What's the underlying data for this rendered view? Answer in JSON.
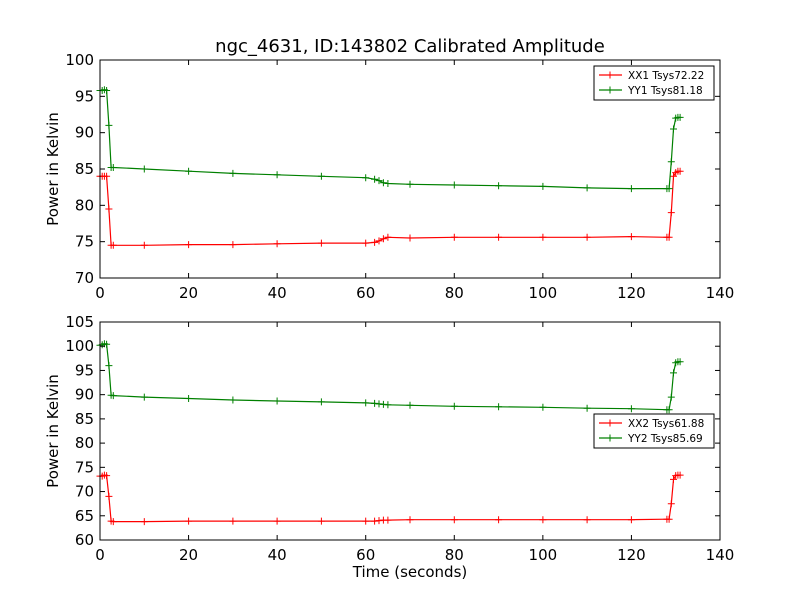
{
  "figure": {
    "title": "ngc_4631, ID:143802 Calibrated Amplitude",
    "xlabel": "Time (seconds)"
  },
  "chart_data": [
    {
      "type": "line",
      "title": "ngc_4631, ID:143802 Calibrated Amplitude",
      "xlabel": "",
      "ylabel": "Power in Kelvin",
      "xlim": [
        0,
        140
      ],
      "ylim": [
        70,
        100
      ],
      "xticks": [
        "0",
        "20",
        "40",
        "60",
        "80",
        "100",
        "120",
        "140"
      ],
      "yticks": [
        "70",
        "75",
        "80",
        "85",
        "90",
        "95",
        "100"
      ],
      "grid": false,
      "legend_position": "top-right",
      "marker": "+",
      "series": [
        {
          "name": "XX1 Tsys72.22",
          "color": "#ff0000",
          "x": [
            0,
            0.5,
            1,
            1.5,
            2,
            2.5,
            3,
            10,
            20,
            30,
            40,
            50,
            60,
            62,
            63,
            64,
            65,
            70,
            80,
            90,
            100,
            110,
            120,
            128,
            128.5,
            129,
            129.5,
            130,
            130.5,
            131
          ],
          "y": [
            84,
            84,
            84,
            84,
            79.5,
            74.5,
            74.5,
            74.5,
            74.6,
            74.6,
            74.7,
            74.8,
            74.8,
            74.9,
            75.1,
            75.4,
            75.6,
            75.5,
            75.6,
            75.6,
            75.6,
            75.6,
            75.7,
            75.6,
            75.6,
            79,
            84,
            84.5,
            84.7,
            84.7
          ]
        },
        {
          "name": "YY1 Tsys81.18",
          "color": "#008000",
          "x": [
            0,
            0.5,
            1,
            1.5,
            2,
            2.5,
            3,
            10,
            20,
            30,
            40,
            50,
            60,
            62,
            63,
            64,
            65,
            70,
            80,
            90,
            100,
            110,
            120,
            128,
            128.5,
            129,
            129.5,
            130,
            130.5,
            131
          ],
          "y": [
            95.8,
            95.8,
            95.9,
            95.8,
            91,
            85.2,
            85.2,
            85,
            84.7,
            84.4,
            84.2,
            84,
            83.8,
            83.6,
            83.4,
            83.1,
            83,
            82.9,
            82.8,
            82.7,
            82.6,
            82.4,
            82.3,
            82.3,
            82.3,
            86,
            90.5,
            92,
            92.1,
            92.1
          ]
        }
      ]
    },
    {
      "type": "line",
      "title": "",
      "xlabel": "Time (seconds)",
      "ylabel": "Power in Kelvin",
      "xlim": [
        0,
        140
      ],
      "ylim": [
        60,
        105
      ],
      "xticks": [
        "0",
        "20",
        "40",
        "60",
        "80",
        "100",
        "120",
        "140"
      ],
      "yticks": [
        "60",
        "65",
        "70",
        "75",
        "80",
        "85",
        "90",
        "95",
        "100",
        "105"
      ],
      "grid": false,
      "legend_position": "center-right",
      "marker": "+",
      "series": [
        {
          "name": "XX2 Tsys61.88",
          "color": "#ff0000",
          "x": [
            0,
            0.5,
            1,
            1.5,
            2,
            2.5,
            3,
            10,
            20,
            30,
            40,
            50,
            60,
            62,
            63,
            64,
            65,
            70,
            80,
            90,
            100,
            110,
            120,
            128,
            128.5,
            129,
            129.5,
            130,
            130.5,
            131
          ],
          "y": [
            73.2,
            73.2,
            73.4,
            73.3,
            69,
            63.9,
            63.8,
            63.8,
            63.9,
            63.9,
            63.9,
            63.9,
            63.9,
            63.9,
            64,
            64.1,
            64.1,
            64.2,
            64.2,
            64.2,
            64.2,
            64.2,
            64.2,
            64.3,
            64.3,
            67.5,
            72.5,
            73.3,
            73.4,
            73.4
          ]
        },
        {
          "name": "YY2 Tsys85.69",
          "color": "#008000",
          "x": [
            0,
            0.5,
            1,
            1.5,
            2,
            2.5,
            3,
            10,
            20,
            30,
            40,
            50,
            60,
            62,
            63,
            64,
            65,
            70,
            80,
            90,
            100,
            110,
            120,
            128,
            128.5,
            129,
            129.5,
            130,
            130.5,
            131
          ],
          "y": [
            100.2,
            100.3,
            100.5,
            100.4,
            96,
            89.9,
            89.8,
            89.5,
            89.2,
            88.9,
            88.7,
            88.5,
            88.3,
            88.2,
            88.1,
            88,
            87.9,
            87.8,
            87.6,
            87.5,
            87.4,
            87.2,
            87.1,
            86.9,
            86.9,
            89.5,
            94.5,
            96.6,
            96.8,
            96.8
          ]
        }
      ]
    }
  ]
}
